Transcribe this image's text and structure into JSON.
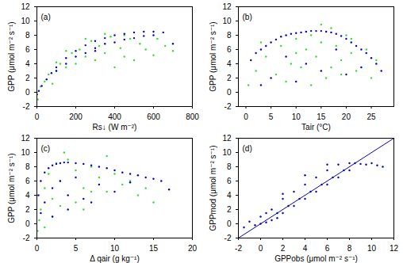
{
  "chart_data": [
    {
      "type": "scatter",
      "annotation": "(a)",
      "marker": "circle",
      "xlabel": "Rs↓ (W m⁻²)",
      "ylabel": "GPP (μmol m⁻² s⁻¹)",
      "xlim": [
        0,
        800
      ],
      "xticks": [
        0,
        200,
        400,
        600,
        800
      ],
      "ylim": [
        -2,
        12
      ],
      "yticks": [
        -2,
        0,
        2,
        4,
        6,
        8,
        10,
        12
      ],
      "series": [
        {
          "color": "#33dd33",
          "x": [
            0,
            5,
            20,
            40,
            60,
            80,
            100,
            120,
            150,
            180,
            200,
            220,
            250,
            280,
            300,
            320,
            350,
            380,
            400,
            430,
            450,
            480,
            500,
            530,
            560,
            600,
            620,
            660,
            700,
            100,
            150,
            250,
            350,
            450
          ],
          "values": [
            0.0,
            -1.0,
            0.8,
            1.5,
            2.5,
            1.2,
            3.0,
            4.0,
            3.5,
            5.5,
            4.0,
            6.0,
            5.0,
            7.2,
            4.5,
            6.5,
            5.5,
            7.8,
            3.5,
            6.2,
            5.0,
            7.5,
            4.5,
            6.8,
            6.0,
            5.2,
            7.5,
            6.5,
            5.8,
            4.2,
            5.8,
            7.5,
            8.2,
            8.0
          ]
        },
        {
          "color": "#0000cc",
          "x": [
            0,
            10,
            25,
            50,
            75,
            100,
            150,
            200,
            250,
            300,
            350,
            400,
            450,
            500,
            550,
            600,
            650,
            700,
            150,
            200,
            250,
            300,
            350,
            400,
            450,
            500,
            550,
            600,
            100,
            300
          ],
          "values": [
            -0.3,
            0.2,
            0.9,
            1.8,
            2.7,
            3.5,
            4.8,
            5.8,
            6.6,
            7.2,
            7.6,
            8.0,
            8.2,
            8.4,
            8.5,
            8.5,
            8.4,
            6.8,
            4.0,
            5.0,
            5.5,
            6.2,
            6.8,
            7.0,
            7.4,
            7.6,
            7.9,
            8.0,
            3.0,
            5.8
          ]
        }
      ]
    },
    {
      "type": "scatter",
      "annotation": "(b)",
      "marker": "circle",
      "xlabel": "Tair (°C)",
      "ylabel": "GPP (μmol m⁻² s⁻¹)",
      "xlim": [
        -1.5,
        29.5
      ],
      "xticks": [
        0,
        5,
        10,
        15,
        20,
        25
      ],
      "ylim": [
        -2,
        12
      ],
      "yticks": [
        -2,
        0,
        2,
        4,
        6,
        8,
        10,
        12
      ],
      "series": [
        {
          "color": "#33dd33",
          "x": [
            0.5,
            2,
            4,
            6,
            7,
            9,
            10,
            11,
            12,
            13,
            14,
            15,
            16,
            17,
            18,
            19,
            20,
            21,
            22,
            24,
            25,
            26,
            3,
            8,
            13,
            17,
            21,
            15,
            10,
            19
          ],
          "values": [
            1.0,
            3.0,
            5.0,
            2.5,
            6.5,
            4.0,
            7.5,
            3.5,
            6.0,
            8.0,
            5.0,
            7.0,
            2.0,
            9.0,
            6.5,
            4.5,
            8.0,
            5.5,
            3.0,
            6.0,
            2.0,
            4.5,
            7.0,
            1.5,
            1.0,
            3.5,
            7.5,
            9.5,
            5.5,
            2.5
          ]
        },
        {
          "color": "#0000cc",
          "x": [
            1,
            2,
            3,
            4,
            5,
            6,
            7,
            8,
            9,
            10,
            11,
            12,
            13,
            14,
            15,
            16,
            17,
            18,
            19,
            20,
            21,
            22,
            23,
            24,
            25,
            26,
            27,
            5,
            10,
            15,
            20,
            8,
            12,
            18,
            3,
            23
          ],
          "values": [
            4.5,
            5.5,
            6.0,
            6.5,
            7.0,
            7.4,
            7.8,
            8.0,
            8.2,
            8.3,
            8.4,
            8.5,
            8.6,
            8.6,
            8.6,
            8.5,
            8.4,
            8.2,
            7.9,
            7.5,
            7.0,
            6.5,
            6.0,
            5.5,
            4.8,
            4.0,
            3.0,
            2.0,
            1.5,
            3.0,
            2.5,
            5.0,
            4.0,
            6.0,
            1.0,
            3.5
          ]
        }
      ]
    },
    {
      "type": "scatter",
      "annotation": "(c)",
      "marker": "circle",
      "xlabel": "Δ qair (g kg⁻¹)",
      "ylabel": "GPP (μmol m⁻² s⁻¹)",
      "xlim": [
        0,
        20
      ],
      "xticks": [
        0,
        5,
        10,
        15,
        20
      ],
      "ylim": [
        -2,
        12
      ],
      "yticks": [
        -2,
        0,
        2,
        4,
        6,
        8,
        10,
        12
      ],
      "series": [
        {
          "color": "#33dd33",
          "x": [
            0.1,
            0.5,
            1,
            1.5,
            2,
            2.5,
            3,
            4,
            5,
            6,
            7,
            8,
            9,
            10,
            11,
            12,
            13,
            14,
            15,
            0.3,
            1,
            2,
            3,
            5,
            7,
            9,
            3.5,
            6
          ],
          "values": [
            -1.0,
            2.0,
            5.0,
            7.0,
            3.5,
            8.5,
            6.0,
            9.0,
            7.5,
            5.0,
            8.0,
            6.5,
            4.5,
            7.0,
            5.5,
            6.0,
            4.0,
            5.0,
            3.0,
            0.5,
            -0.5,
            1.0,
            2.5,
            3.0,
            4.5,
            9.5,
            10.0,
            2.0
          ]
        },
        {
          "color": "#0000cc",
          "x": [
            0.2,
            0.5,
            1,
            1.5,
            2,
            2.5,
            3,
            3.5,
            4,
            5,
            6,
            7,
            8,
            9,
            10,
            11,
            12,
            13,
            14,
            15,
            16,
            17,
            1,
            2,
            3,
            4,
            5,
            6,
            8,
            10,
            12,
            0.5,
            2,
            4,
            7
          ],
          "values": [
            4.0,
            6.0,
            7.2,
            7.8,
            8.2,
            8.4,
            8.5,
            8.6,
            8.6,
            8.5,
            8.4,
            8.2,
            8.0,
            7.8,
            7.5,
            7.2,
            7.0,
            6.8,
            6.5,
            6.3,
            6.0,
            4.8,
            3.0,
            5.0,
            6.0,
            4.0,
            6.5,
            3.5,
            5.5,
            4.5,
            5.8,
            1.5,
            1.0,
            2.0,
            3.0
          ]
        }
      ]
    },
    {
      "type": "scatter",
      "annotation": "(d)",
      "marker": "circle",
      "xlabel": "GPPobs (μmol m⁻² s⁻¹)",
      "ylabel": "GPPmod (μmol m⁻² s⁻¹)",
      "xlim": [
        -2,
        12
      ],
      "xticks": [
        -2,
        0,
        2,
        4,
        6,
        8,
        10,
        12
      ],
      "ylim": [
        -2,
        12
      ],
      "yticks": [
        -2,
        0,
        2,
        4,
        6,
        8,
        10,
        12
      ],
      "reference_line": {
        "color": "#0000cc",
        "x": [
          -2,
          12
        ],
        "values": [
          -2,
          12
        ]
      },
      "series": [
        {
          "color": "#0000cc",
          "x": [
            -1.5,
            -1,
            -0.5,
            0,
            0,
            0.5,
            1,
            1,
            1.5,
            2,
            2,
            2.5,
            3,
            3,
            3.5,
            4,
            4,
            4.5,
            5,
            5,
            5.5,
            6,
            6,
            6.5,
            7,
            7,
            7.5,
            8,
            8,
            8.5,
            9,
            9.5,
            10,
            10.5,
            11,
            2,
            4,
            6,
            1.5,
            0.5
          ],
          "values": [
            -0.5,
            0.3,
            -0.2,
            0.0,
            1.0,
            0.2,
            0.5,
            2.0,
            1.5,
            1.5,
            3.5,
            2.5,
            2.5,
            4.5,
            3.5,
            3.5,
            5.5,
            4.5,
            4.5,
            6.5,
            5.5,
            5.5,
            7.5,
            6.5,
            6.5,
            8.3,
            7.5,
            7.5,
            8.5,
            8.5,
            8.4,
            8.3,
            8.5,
            8.2,
            8.0,
            4.2,
            6.8,
            8.3,
            0.8,
            1.5
          ]
        }
      ]
    }
  ]
}
